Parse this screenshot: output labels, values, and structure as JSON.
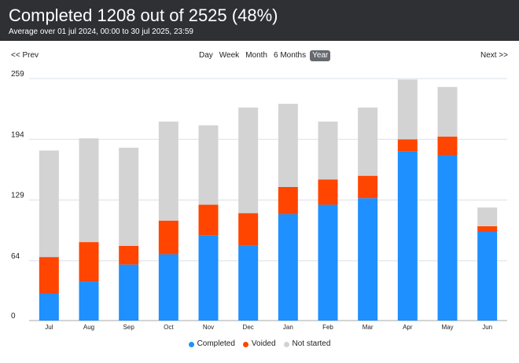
{
  "header": {
    "title": "Completed 1208 out of 2525 (48%)",
    "subtitle": "Average over 01 jul 2024, 00:00 to 30 jul 2025, 23:59"
  },
  "nav": {
    "prev_label": "<< Prev",
    "next_label": "Next >>",
    "tabs": [
      {
        "label": "Day"
      },
      {
        "label": "Week"
      },
      {
        "label": "Month"
      },
      {
        "label": "6 Months"
      },
      {
        "label": "Year",
        "active": true
      }
    ]
  },
  "legend": [
    {
      "label": "Completed",
      "color": "#1e90ff"
    },
    {
      "label": "Voided",
      "color": "#ff4500"
    },
    {
      "label": "Not started",
      "color": "#d3d3d3"
    }
  ],
  "chart_data": {
    "type": "bar",
    "stacked": true,
    "categories": [
      "Jul",
      "Aug",
      "Sep",
      "Oct",
      "Nov",
      "Dec",
      "Jan",
      "Feb",
      "Mar",
      "Apr",
      "May",
      "Jun"
    ],
    "series": [
      {
        "name": "Completed",
        "color": "#1e90ff",
        "values": [
          29,
          42,
          60,
          71,
          91,
          80,
          114,
          124,
          131,
          181,
          177,
          95
        ]
      },
      {
        "name": "Voided",
        "color": "#ff4500",
        "values": [
          39,
          42,
          20,
          36,
          33,
          35,
          29,
          27,
          24,
          13,
          20,
          6
        ]
      },
      {
        "name": "Not started",
        "color": "#d3d3d3",
        "values": [
          114,
          111,
          105,
          106,
          85,
          113,
          89,
          62,
          73,
          64,
          53,
          20
        ]
      }
    ],
    "yticks": [
      0,
      64,
      129,
      194,
      259
    ],
    "ylim": [
      0,
      259
    ],
    "grid": true,
    "legend_position": "bottom"
  }
}
